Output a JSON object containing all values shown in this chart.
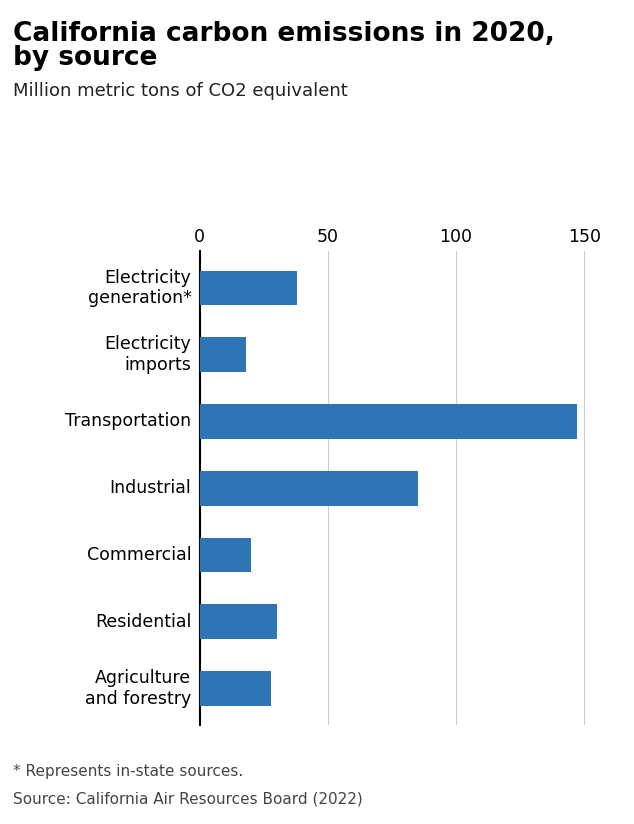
{
  "title_line1": "California carbon emissions in 2020,",
  "title_line2": "by source",
  "subtitle": "Million metric tons of CO2 equivalent",
  "footnote1": "* Represents in-state sources.",
  "footnote2": "Source: California Air Resources Board (2022)",
  "categories": [
    "Agriculture\nand forestry",
    "Residential",
    "Commercial",
    "Industrial",
    "Transportation",
    "Electricity\nimports",
    "Electricity\ngeneration*"
  ],
  "values": [
    28,
    30,
    20,
    85,
    147,
    18,
    38
  ],
  "bar_color": "#2e75b6",
  "xlim": [
    0,
    162
  ],
  "xticks": [
    0,
    50,
    100,
    150
  ],
  "grid_color": "#cccccc",
  "background_color": "#ffffff",
  "title_fontsize": 19,
  "subtitle_fontsize": 13,
  "tick_label_fontsize": 12.5,
  "footnote_fontsize": 11,
  "bar_height": 0.52
}
